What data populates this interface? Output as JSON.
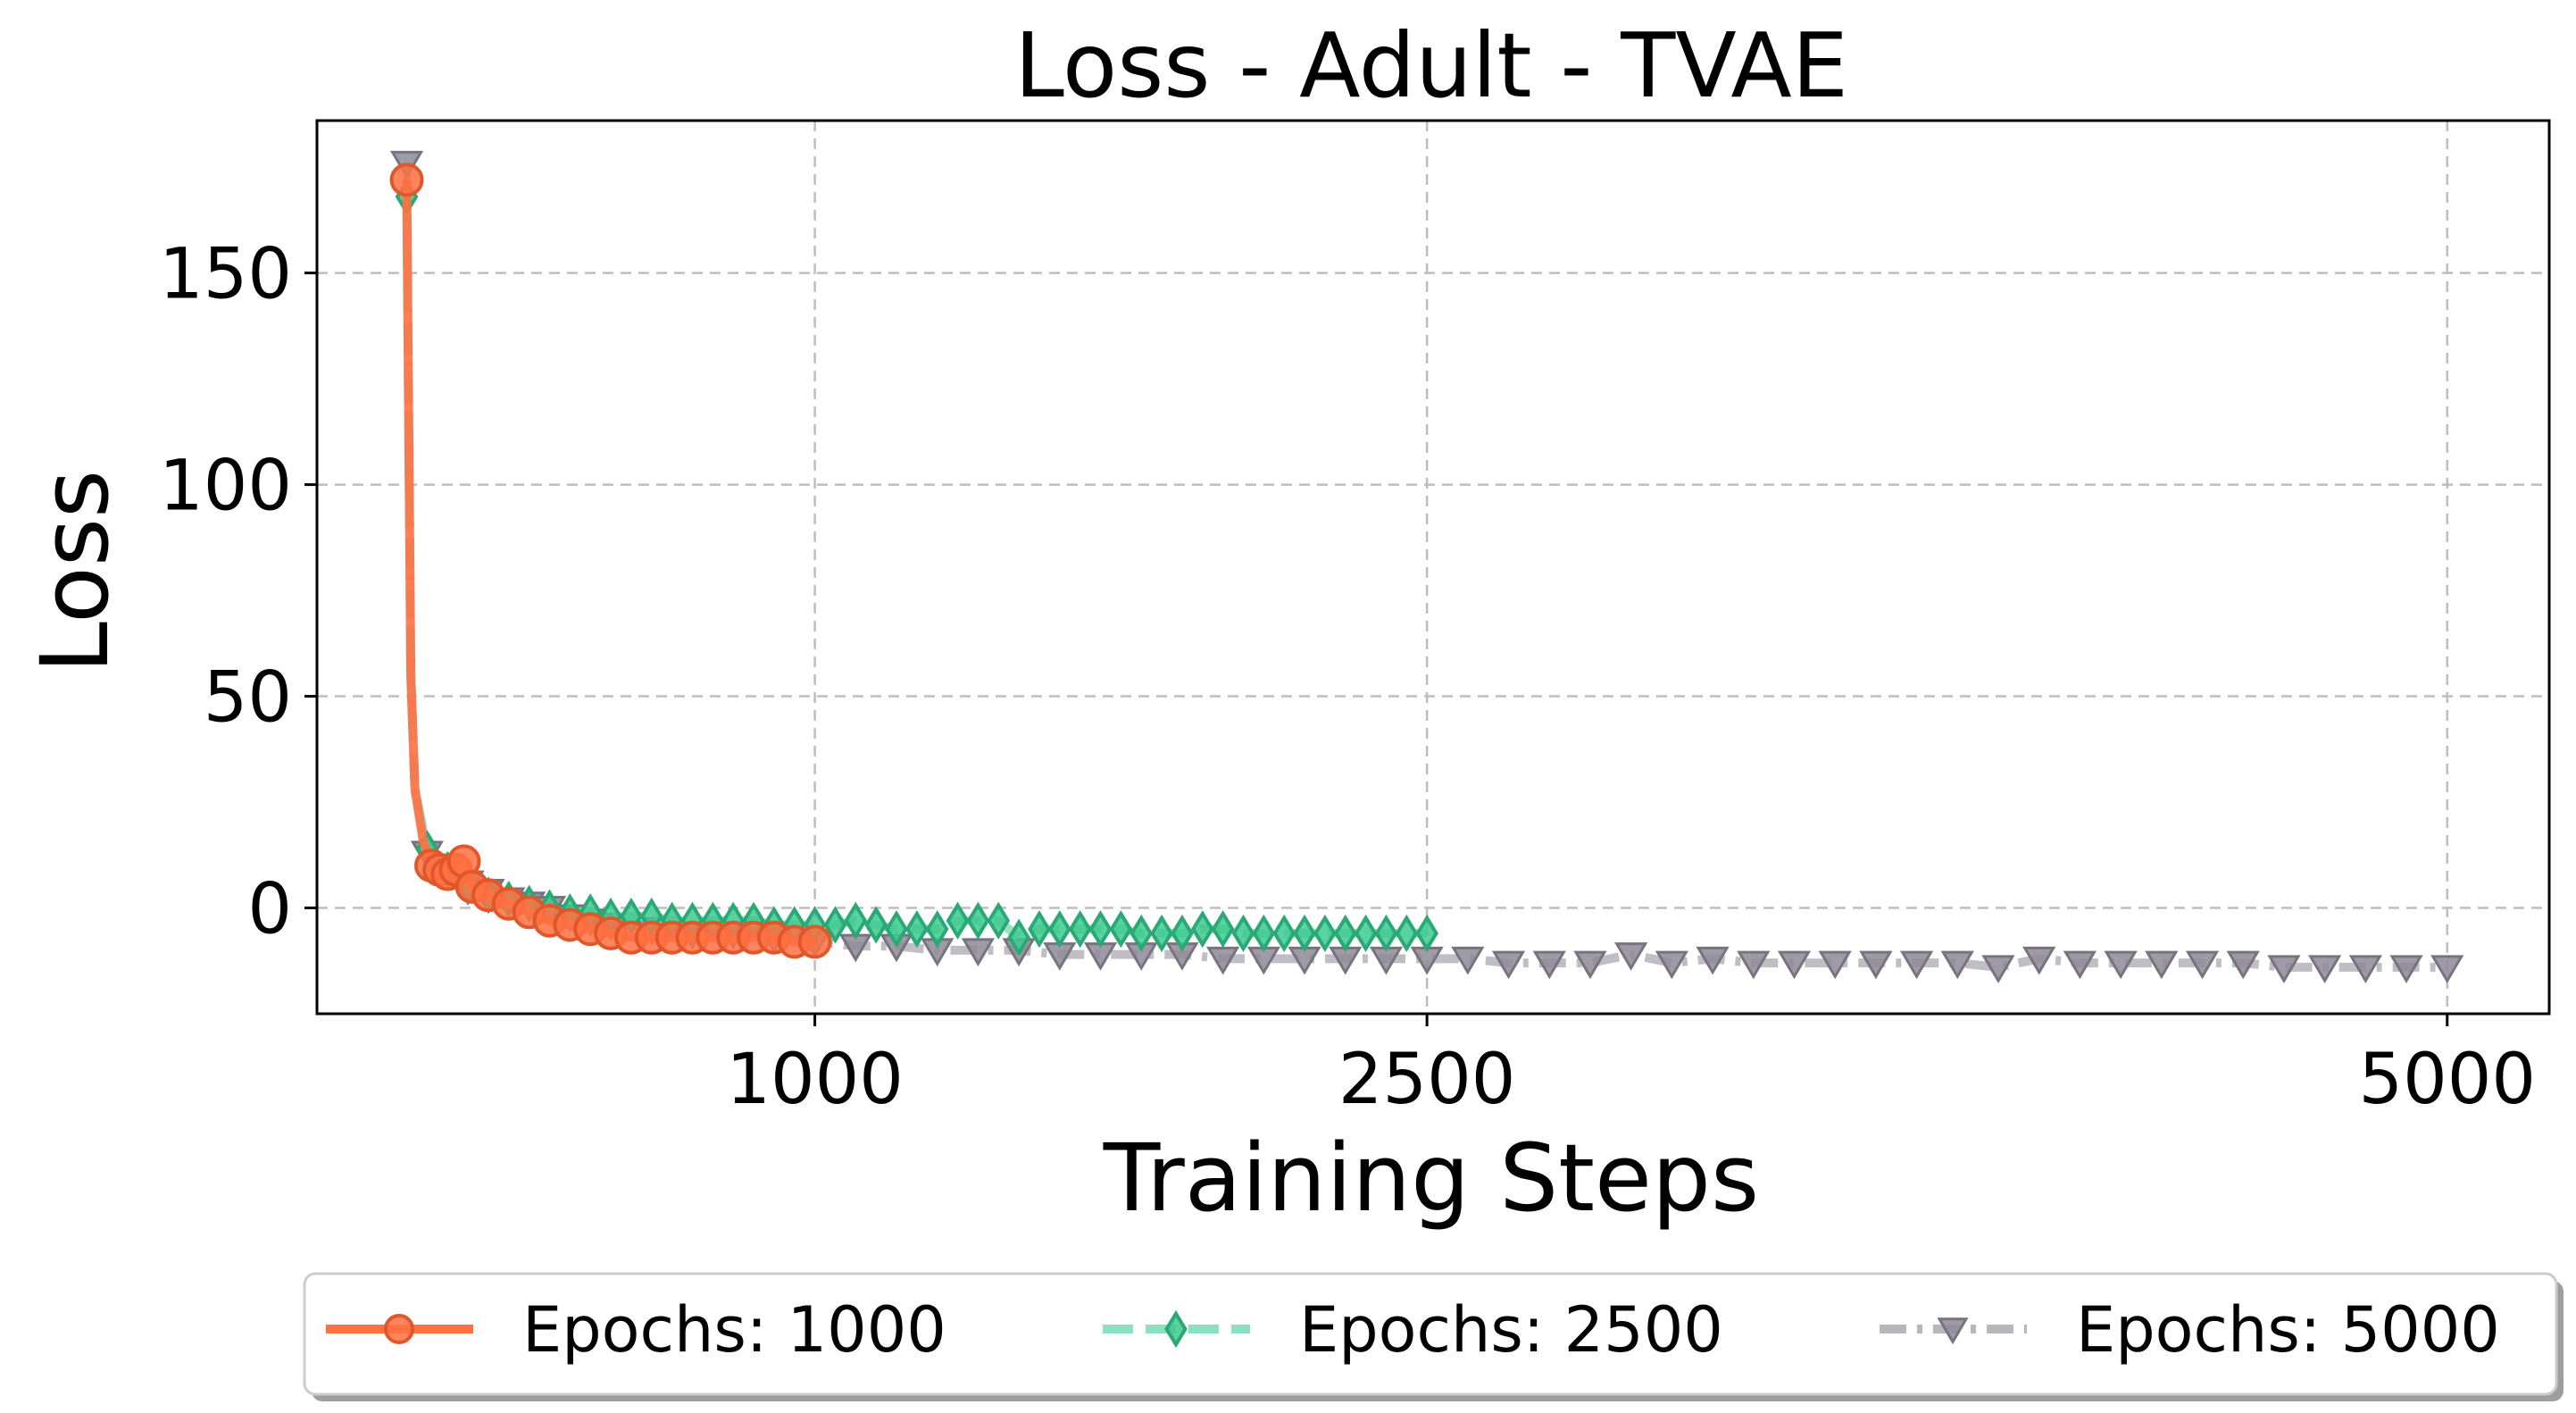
{
  "chart_data": {
    "type": "line",
    "title": "Loss - Adult - TVAE",
    "xlabel": "Training Steps",
    "ylabel": "Loss",
    "xlim": [
      -220,
      5250
    ],
    "ylim": [
      -25,
      186
    ],
    "xticks": [
      1000,
      2500,
      5000
    ],
    "yticks": [
      0,
      50,
      100,
      150
    ],
    "grid": true,
    "legend_position": "bottom-center",
    "series": [
      {
        "name": "Epochs: 1000",
        "color": "#ff7043",
        "marker": "circle",
        "linestyle": "solid",
        "points": [
          [
            0,
            172
          ],
          [
            10,
            55
          ],
          [
            20,
            28
          ],
          [
            40,
            16
          ],
          [
            60,
            10
          ],
          [
            80,
            9
          ],
          [
            100,
            8
          ],
          [
            120,
            9
          ],
          [
            140,
            11
          ],
          [
            160,
            5
          ],
          [
            200,
            3
          ],
          [
            250,
            1
          ],
          [
            300,
            -1
          ],
          [
            350,
            -3
          ],
          [
            400,
            -4
          ],
          [
            450,
            -5
          ],
          [
            500,
            -6
          ],
          [
            550,
            -7
          ],
          [
            600,
            -7
          ],
          [
            650,
            -7
          ],
          [
            700,
            -7
          ],
          [
            750,
            -7
          ],
          [
            800,
            -7
          ],
          [
            850,
            -7
          ],
          [
            900,
            -7
          ],
          [
            950,
            -8
          ],
          [
            1000,
            -8
          ]
        ]
      },
      {
        "name": "Epochs: 2500",
        "color": "#3cc98f",
        "marker": "diamond",
        "linestyle": "dashed",
        "points": [
          [
            0,
            168
          ],
          [
            10,
            55
          ],
          [
            20,
            28
          ],
          [
            50,
            14
          ],
          [
            100,
            9
          ],
          [
            150,
            5
          ],
          [
            200,
            3
          ],
          [
            250,
            2
          ],
          [
            300,
            1
          ],
          [
            350,
            0
          ],
          [
            400,
            -1
          ],
          [
            450,
            -1
          ],
          [
            500,
            -2
          ],
          [
            550,
            -2
          ],
          [
            600,
            -2
          ],
          [
            650,
            -3
          ],
          [
            700,
            -3
          ],
          [
            750,
            -3
          ],
          [
            800,
            -3
          ],
          [
            850,
            -3
          ],
          [
            900,
            -4
          ],
          [
            950,
            -4
          ],
          [
            1000,
            -4
          ],
          [
            1050,
            -4
          ],
          [
            1100,
            -3
          ],
          [
            1150,
            -4
          ],
          [
            1200,
            -5
          ],
          [
            1250,
            -5
          ],
          [
            1300,
            -5
          ],
          [
            1350,
            -3
          ],
          [
            1400,
            -3
          ],
          [
            1450,
            -3
          ],
          [
            1500,
            -7
          ],
          [
            1550,
            -5
          ],
          [
            1600,
            -5
          ],
          [
            1650,
            -5
          ],
          [
            1700,
            -5
          ],
          [
            1750,
            -5
          ],
          [
            1800,
            -6
          ],
          [
            1850,
            -6
          ],
          [
            1900,
            -6
          ],
          [
            1950,
            -5
          ],
          [
            2000,
            -5
          ],
          [
            2050,
            -6
          ],
          [
            2100,
            -6
          ],
          [
            2150,
            -6
          ],
          [
            2200,
            -6
          ],
          [
            2250,
            -6
          ],
          [
            2300,
            -6
          ],
          [
            2350,
            -6
          ],
          [
            2400,
            -6
          ],
          [
            2450,
            -6
          ],
          [
            2500,
            -6
          ]
        ]
      },
      {
        "name": "Epochs: 5000",
        "color": "#8e8a96",
        "marker": "triangle-down",
        "linestyle": "dashdot",
        "points": [
          [
            0,
            176
          ],
          [
            10,
            55
          ],
          [
            20,
            28
          ],
          [
            50,
            13
          ],
          [
            100,
            10
          ],
          [
            150,
            6
          ],
          [
            200,
            4
          ],
          [
            250,
            2
          ],
          [
            300,
            1
          ],
          [
            350,
            0
          ],
          [
            400,
            -2
          ],
          [
            450,
            -3
          ],
          [
            500,
            -4
          ],
          [
            600,
            -5
          ],
          [
            700,
            -6
          ],
          [
            800,
            -6
          ],
          [
            900,
            -7
          ],
          [
            1000,
            -8
          ],
          [
            1100,
            -9
          ],
          [
            1200,
            -9
          ],
          [
            1300,
            -10
          ],
          [
            1400,
            -10
          ],
          [
            1500,
            -10
          ],
          [
            1600,
            -11
          ],
          [
            1700,
            -11
          ],
          [
            1800,
            -11
          ],
          [
            1900,
            -11
          ],
          [
            2000,
            -12
          ],
          [
            2100,
            -12
          ],
          [
            2200,
            -12
          ],
          [
            2300,
            -12
          ],
          [
            2400,
            -12
          ],
          [
            2500,
            -12
          ],
          [
            2600,
            -12
          ],
          [
            2700,
            -13
          ],
          [
            2800,
            -13
          ],
          [
            2900,
            -13
          ],
          [
            3000,
            -11
          ],
          [
            3100,
            -13
          ],
          [
            3200,
            -12
          ],
          [
            3300,
            -13
          ],
          [
            3400,
            -13
          ],
          [
            3500,
            -13
          ],
          [
            3600,
            -13
          ],
          [
            3700,
            -13
          ],
          [
            3800,
            -13
          ],
          [
            3900,
            -14
          ],
          [
            4000,
            -12
          ],
          [
            4100,
            -13
          ],
          [
            4200,
            -13
          ],
          [
            4300,
            -13
          ],
          [
            4400,
            -13
          ],
          [
            4500,
            -13
          ],
          [
            4600,
            -14
          ],
          [
            4700,
            -14
          ],
          [
            4800,
            -14
          ],
          [
            4900,
            -14
          ],
          [
            5000,
            -14
          ]
        ]
      }
    ]
  }
}
